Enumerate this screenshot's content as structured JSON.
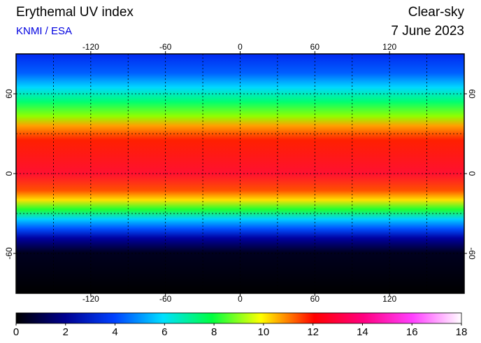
{
  "header": {
    "title": "Erythemal UV index",
    "source": "KNMI / ESA",
    "sky": "Clear-sky",
    "date": "7 June 2023"
  },
  "map": {
    "lon_lim": [
      -180,
      180
    ],
    "lat_lim": [
      -90,
      90
    ],
    "lon_ticks": [
      -120,
      -60,
      0,
      60,
      120
    ],
    "lat_ticks": [
      -60,
      0,
      60
    ],
    "grid_lon": [
      -150,
      -120,
      -90,
      -60,
      -30,
      0,
      30,
      60,
      90,
      120,
      150
    ],
    "grid_lat": [
      -60,
      -30,
      0,
      30,
      60
    ]
  },
  "colorbar": {
    "lim": [
      0,
      18
    ],
    "ticks": [
      0,
      2,
      4,
      6,
      8,
      10,
      12,
      14,
      16,
      18
    ]
  }
}
